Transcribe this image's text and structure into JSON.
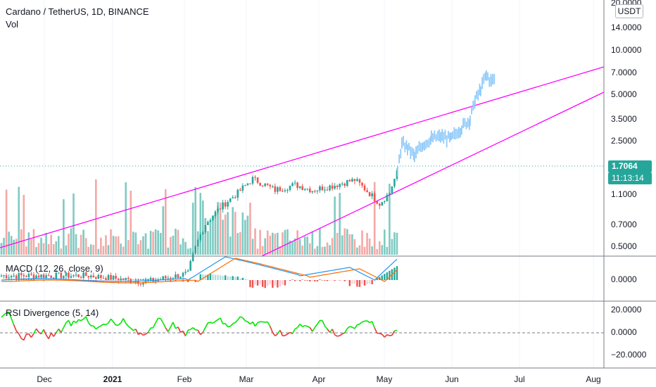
{
  "chart_header": {
    "symbol_title": "Cardano / TetherUS, 1D, BINANCE",
    "volume_label": "Vol"
  },
  "currency_button": "USDT",
  "last_price": {
    "value": "1.7064",
    "countdown": "11:13:14"
  },
  "price_axis_ticks": [
    "20.0000",
    "14.0000",
    "10.0000",
    "7.0000",
    "5.0000",
    "3.5000",
    "2.5000",
    "1.1000",
    "0.7000",
    "0.5000"
  ],
  "macd": {
    "title": "MACD (12, 26, close, 9)",
    "axis_ticks": [
      "0.0000"
    ]
  },
  "rsi": {
    "title": "RSI Divergence (5, 14)",
    "axis_ticks": [
      "20.0000",
      "0.0000",
      "−20.0000"
    ]
  },
  "time_axis": [
    "Dec",
    "2021",
    "Feb",
    "Mar",
    "Apr",
    "May",
    "Jun",
    "Jul",
    "Aug"
  ],
  "colors": {
    "up": "#26a69a",
    "down": "#ef5350",
    "wedge": "#ff00ff",
    "macd_line": "#2196f3",
    "signal_line": "#ff6d00",
    "rsi_up": "#00e600",
    "rsi_down": "#e53935",
    "projection": "#90caf9"
  }
}
